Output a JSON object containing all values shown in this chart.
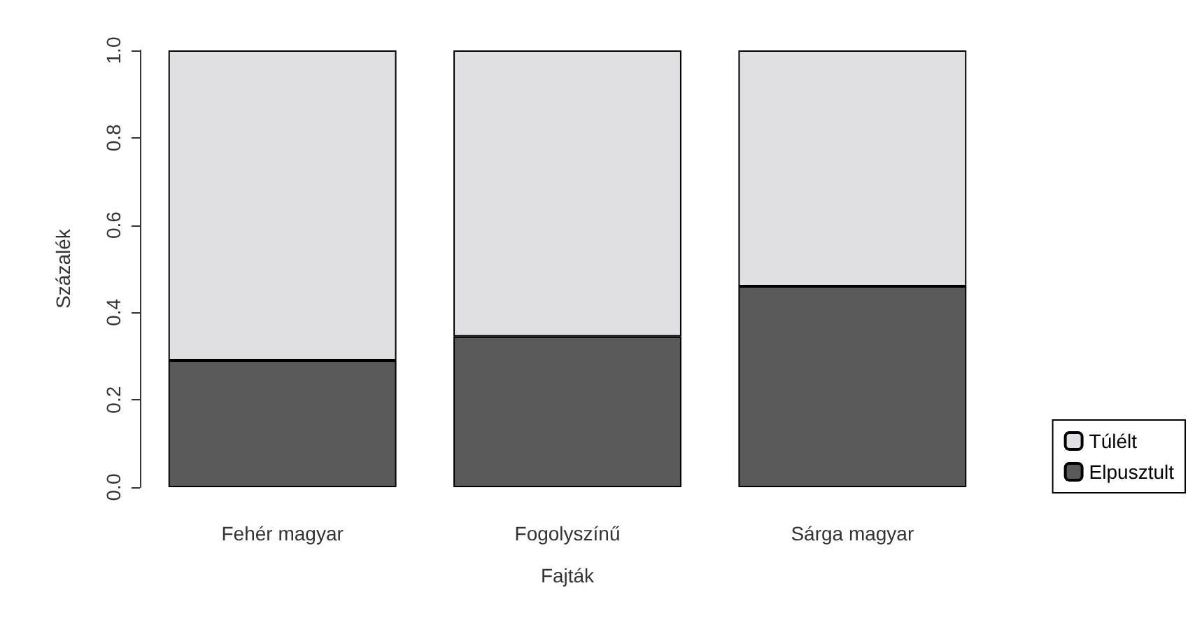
{
  "chart_data": {
    "type": "bar",
    "stacked": true,
    "xlabel": "Fajták",
    "ylabel": "Százalék",
    "categories": [
      "Fehér magyar",
      "Fogolyszínű",
      "Sárga magyar"
    ],
    "series": [
      {
        "name": "Elpusztult",
        "color": "#5a5a5a",
        "values": [
          0.29,
          0.345,
          0.46
        ]
      },
      {
        "name": "Túlélt",
        "color": "#e0e0e3",
        "values": [
          0.71,
          0.655,
          0.54
        ]
      }
    ],
    "ylim": [
      0,
      1
    ],
    "yticks": [
      {
        "value": 0,
        "label": "0.0"
      },
      {
        "value": 0.2,
        "label": "0.2"
      },
      {
        "value": 0.4,
        "label": "0.4"
      },
      {
        "value": 0.6,
        "label": "0.6"
      },
      {
        "value": 0.8,
        "label": "0.8"
      },
      {
        "value": 1,
        "label": "1.0"
      }
    ],
    "grid": false,
    "legend": "bottom right"
  }
}
